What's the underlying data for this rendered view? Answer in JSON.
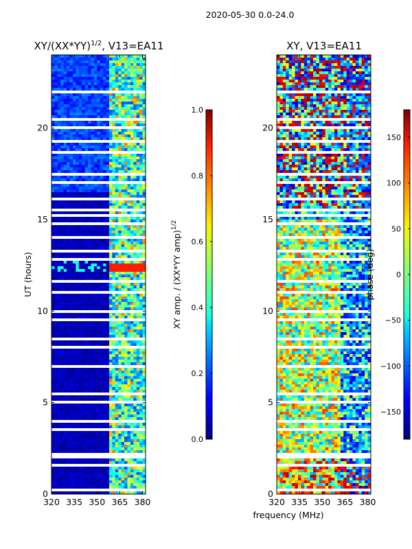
{
  "suptitle": "2020-05-30 0.0-24.0",
  "xlabel_shared": "frequency (MHz)",
  "chart_data": [
    {
      "type": "heatmap",
      "title_main": "XY/(XX*YY)",
      "title_sup": "1/2",
      "title_rest": ", V13=EA11",
      "ylabel": "UT (hours)",
      "xlim": [
        320,
        382
      ],
      "ylim": [
        0,
        24
      ],
      "x_ticks": [
        320,
        335,
        350,
        365,
        380
      ],
      "y_ticks": [
        0,
        5,
        10,
        15,
        20
      ],
      "colormap": "jet",
      "colorbar": {
        "label_main": "XY amp. / (XX*YY amp)",
        "label_sup": "1/2",
        "range": [
          0.0,
          1.0
        ],
        "ticks": [
          "0.0",
          "0.2",
          "0.4",
          "0.6",
          "0.8",
          "1.0"
        ],
        "tick_values": [
          0.0,
          0.2,
          0.4,
          0.6,
          0.8,
          1.0
        ]
      },
      "bands": [
        {
          "f0": 320,
          "f1": 358,
          "mean": 0.05
        },
        {
          "f0": 358,
          "f1": 382,
          "mean": 0.35
        }
      ],
      "flagged_hours": [
        0.2,
        1.5,
        1.6,
        2.0,
        2.2,
        3.0,
        3.5,
        4.0,
        5.0,
        5.5,
        6.0,
        7.0,
        7.2,
        7.5,
        8.0,
        8.5,
        9.0,
        9.5,
        10.0,
        10.5,
        11.0,
        11.6,
        12.0,
        12.8,
        13.3,
        14.0,
        14.8,
        15.2,
        15.5,
        16.1,
        16.2,
        17.0,
        17.5,
        18.0,
        18.7,
        19.3,
        20.0,
        20.5,
        21.0,
        22.0,
        22.5
      ]
    },
    {
      "type": "heatmap",
      "title_main": "XY, V13=EA11",
      "xlim": [
        320,
        382
      ],
      "ylim": [
        0,
        24
      ],
      "x_ticks": [
        320,
        335,
        350,
        365,
        380
      ],
      "y_ticks": [
        0,
        5,
        10,
        15,
        20
      ],
      "colormap": "jet",
      "colorbar": {
        "label_main": "phase (deg)",
        "range": [
          -180,
          180
        ],
        "ticks": [
          "−150",
          "−100",
          "−50",
          "0",
          "50",
          "100",
          "150"
        ],
        "tick_values": [
          -150,
          -100,
          -50,
          0,
          50,
          100,
          150
        ]
      },
      "flagged_hours": [
        0.2,
        1.5,
        1.6,
        2.0,
        2.2,
        3.0,
        3.5,
        4.0,
        5.0,
        5.5,
        6.0,
        7.0,
        7.2,
        7.5,
        8.0,
        8.5,
        9.0,
        9.5,
        10.0,
        10.5,
        11.0,
        11.6,
        12.0,
        12.8,
        13.3,
        14.0,
        14.8,
        15.2,
        15.5,
        16.1,
        16.2,
        17.0,
        17.5,
        18.0,
        18.7,
        19.3,
        20.0,
        20.5,
        21.0,
        22.0,
        22.5
      ]
    }
  ]
}
